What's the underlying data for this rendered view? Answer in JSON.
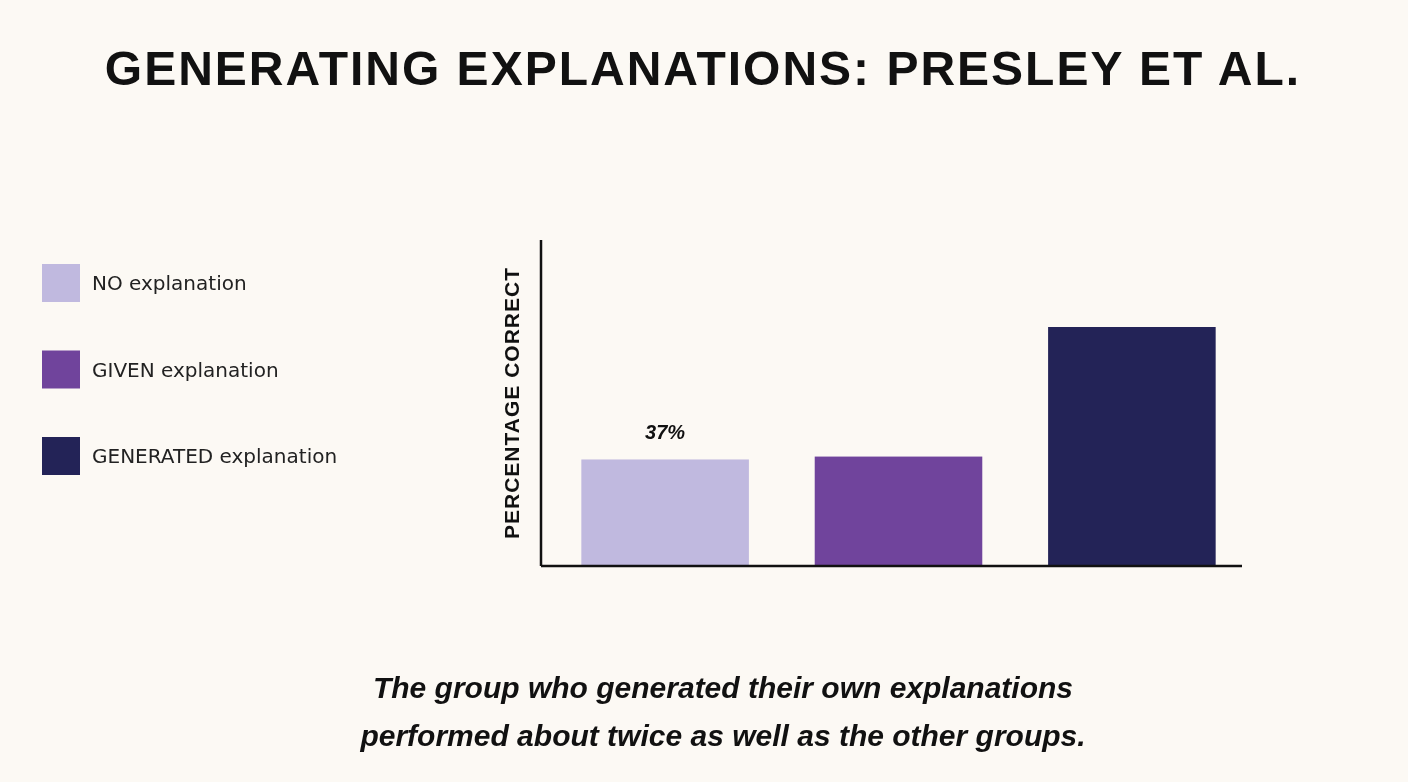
{
  "chart_data": {
    "type": "bar",
    "title": "GENERATING EXPLANATIONS: PRESLEY ET AL.",
    "ylabel": "PERCENTAGE CORRECT",
    "categories": [
      null,
      null,
      null
    ],
    "series": [
      {
        "name": "NO explanation",
        "color": "#c0b9df",
        "values": [
          37,
          null,
          null
        ],
        "value_labels": [
          "37%",
          null,
          null
        ]
      },
      {
        "name": "GIVEN explanation",
        "color": "#70449c",
        "values": [
          null,
          38,
          null
        ]
      },
      {
        "name": "GENERATED explanation",
        "color": "#232357",
        "values": [
          null,
          null,
          83
        ]
      }
    ],
    "legend": "left",
    "stacked": true,
    "annotations": [
      "The group who generated their own explanations performed about twice as well as the other groups."
    ]
  }
}
